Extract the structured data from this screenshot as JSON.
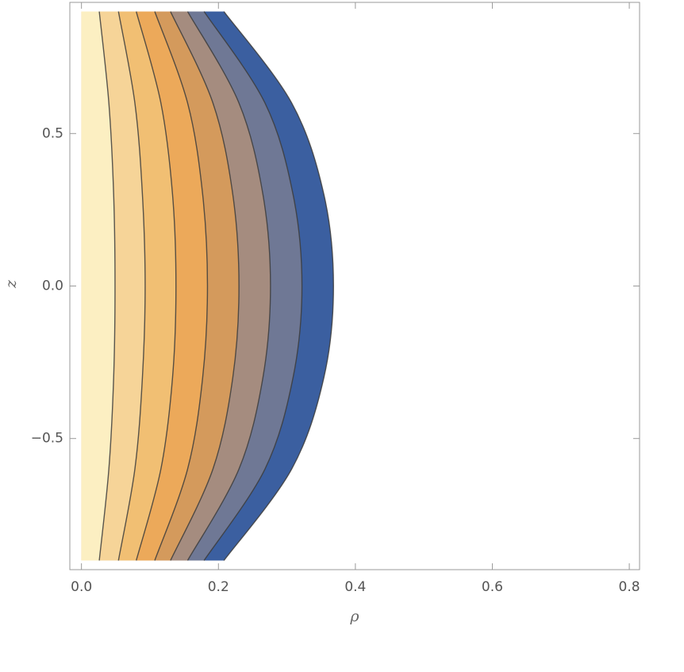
{
  "chart_data": {
    "type": "contour",
    "xlabel": "ρ",
    "ylabel": "z",
    "xlim": [
      -0.017,
      0.815
    ],
    "ylim": [
      -0.93,
      0.93
    ],
    "xticks": [
      {
        "value": 0,
        "label": "0.0"
      },
      0.2,
      0.4,
      0.6,
      0.8
    ],
    "yticks": [
      {
        "value": -0.5,
        "label": "−0.5"
      },
      {
        "value": 0,
        "label": "0.0"
      },
      0.5
    ],
    "line_color": "#3c3c3c",
    "y": [
      -0.9,
      -0.6,
      -0.3,
      0,
      0.3,
      0.6,
      0.9
    ],
    "contours": [
      {
        "color": "#3b5fa0",
        "x": [
          0.208,
          0.307,
          0.354,
          0.368,
          0.354,
          0.307,
          0.208
        ]
      },
      {
        "color": "#6f7895",
        "x": [
          0.179,
          0.268,
          0.309,
          0.322,
          0.309,
          0.268,
          0.179
        ]
      },
      {
        "color": "#a58c7f",
        "x": [
          0.155,
          0.23,
          0.265,
          0.276,
          0.265,
          0.23,
          0.155
        ]
      },
      {
        "color": "#d49a5c",
        "x": [
          0.13,
          0.192,
          0.221,
          0.23,
          0.221,
          0.192,
          0.13
        ]
      },
      {
        "color": "#eca95a",
        "x": [
          0.107,
          0.155,
          0.177,
          0.184,
          0.177,
          0.155,
          0.107
        ]
      },
      {
        "color": "#f1bf73",
        "x": [
          0.08,
          0.116,
          0.133,
          0.138,
          0.133,
          0.116,
          0.08
        ]
      },
      {
        "color": "#f6d498",
        "x": [
          0.054,
          0.078,
          0.089,
          0.093,
          0.089,
          0.078,
          0.054
        ]
      },
      {
        "color": "#fcefc2",
        "x": [
          0.026,
          0.04,
          0.047,
          0.049,
          0.047,
          0.04,
          0.026
        ]
      }
    ]
  }
}
